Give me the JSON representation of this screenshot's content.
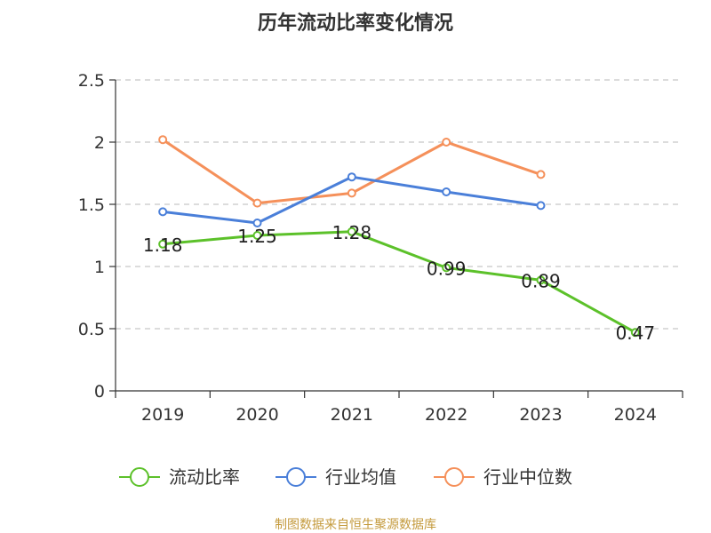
{
  "chart_data": {
    "type": "line",
    "title": "历年流动比率变化情况",
    "categories": [
      "2019",
      "2020",
      "2021",
      "2022",
      "2023",
      "2024"
    ],
    "ylim": [
      0,
      2.5
    ],
    "yticks": [
      "0",
      "0.5",
      "1",
      "1.5",
      "2",
      "2.5"
    ],
    "ytick_values": [
      0,
      0.5,
      1,
      1.5,
      2,
      2.5
    ],
    "grid": true,
    "legend_position": "bottom",
    "series": [
      {
        "name": "流动比率",
        "color": "#5cc12a",
        "values": [
          1.18,
          1.25,
          1.28,
          0.99,
          0.89,
          0.47
        ],
        "labels": [
          "1.18",
          "1.25",
          "1.28",
          "0.99",
          "0.89",
          "0.47"
        ],
        "show_labels": true
      },
      {
        "name": "行业均值",
        "color": "#4a7fd9",
        "values": [
          1.44,
          1.35,
          1.72,
          1.6,
          1.49,
          null
        ],
        "show_labels": false
      },
      {
        "name": "行业中位数",
        "color": "#f5905a",
        "values": [
          2.02,
          1.51,
          1.59,
          2.0,
          1.74,
          null
        ],
        "show_labels": false
      }
    ]
  },
  "source_note": "制图数据来自恒生聚源数据库"
}
